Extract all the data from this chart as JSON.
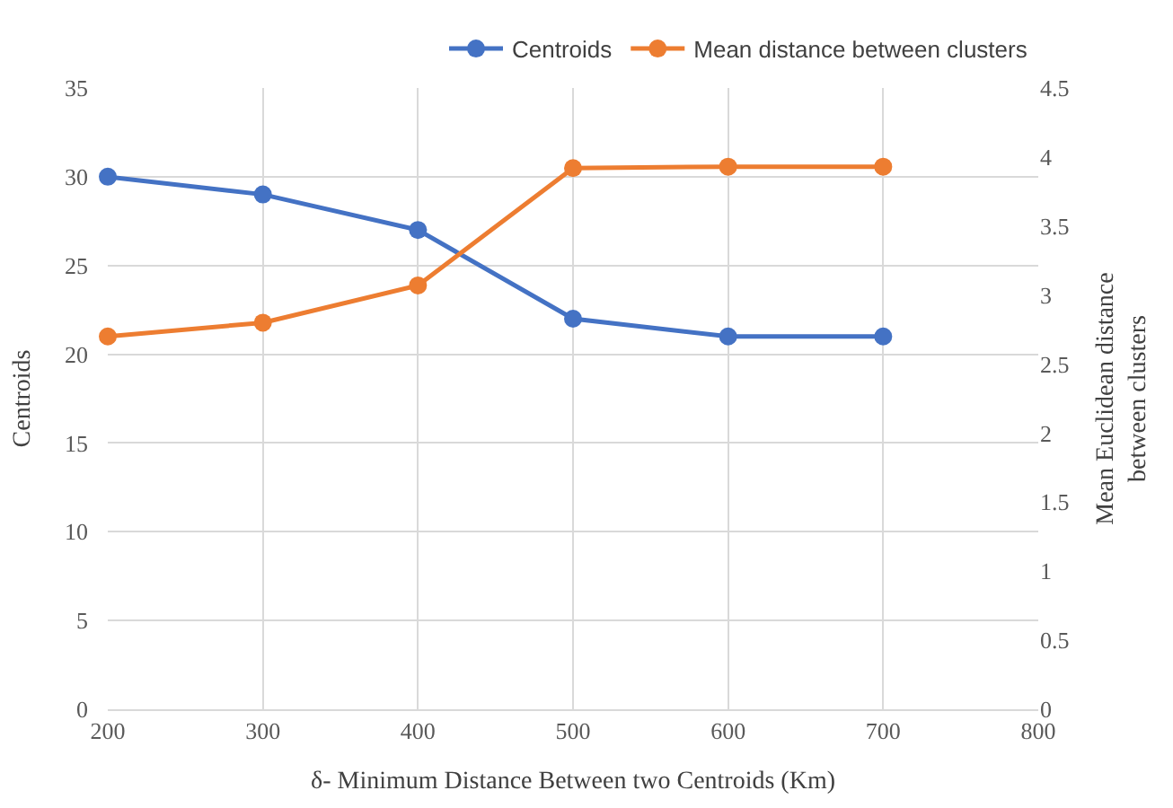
{
  "chart_data": {
    "type": "line",
    "xlabel": "δ- Minimum Distance Between two Centroids (Km)",
    "ylabel": "Centroids",
    "y2label": "Mean Euclidean distance between clusters",
    "x": [
      200,
      300,
      400,
      500,
      600,
      700
    ],
    "series": [
      {
        "name": "Centroids",
        "color": "#4472c4",
        "values": [
          30,
          29,
          27,
          22,
          21,
          21
        ]
      },
      {
        "name": "Mean distance between clusters",
        "color": "#ed7d31",
        "values": [
          2.7,
          2.8,
          3.07,
          3.92,
          3.93,
          3.93
        ],
        "axis": "y2"
      }
    ],
    "xlim": [
      200,
      800
    ],
    "xticks": [
      200,
      300,
      400,
      500,
      600,
      700,
      800
    ],
    "ylim": [
      0,
      35
    ],
    "yticks": [
      0,
      5,
      10,
      15,
      20,
      25,
      30,
      35
    ],
    "y2lim": [
      0,
      4.5
    ],
    "y2ticks": [
      0,
      0.5,
      1,
      1.5,
      2,
      2.5,
      3,
      3.5,
      4,
      4.5
    ],
    "grid": true,
    "legend": "top right",
    "marker": "circle",
    "line_style": "solid"
  }
}
